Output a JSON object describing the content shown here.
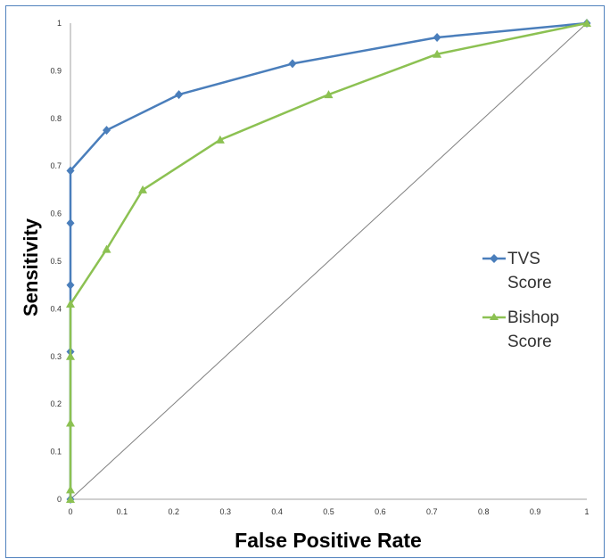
{
  "chart_data": {
    "type": "line",
    "title": "",
    "xlabel": "False Positive Rate",
    "ylabel": "Sensitivity",
    "xlim": [
      0,
      1
    ],
    "ylim": [
      0,
      1
    ],
    "x_ticks": [
      "0",
      "0.1",
      "0.2",
      "0.3",
      "0.4",
      "0.5",
      "0.6",
      "0.7",
      "0.8",
      "0.9",
      "1"
    ],
    "y_ticks": [
      "0",
      "0.1",
      "0.2",
      "0.3",
      "0.4",
      "0.5",
      "0.6",
      "0.7",
      "0.8",
      "0.9",
      "1"
    ],
    "grid": false,
    "legend_position": "right",
    "series": [
      {
        "name": "TVS Score",
        "color": "#4a7ebb",
        "marker": "diamond",
        "x": [
          0,
          0,
          0,
          0,
          0,
          0.07,
          0.21,
          0.43,
          0.71,
          1
        ],
        "y": [
          0,
          0.31,
          0.45,
          0.58,
          0.69,
          0.775,
          0.85,
          0.915,
          0.97,
          1
        ]
      },
      {
        "name": "Bishop Score",
        "color": "#8cc152",
        "marker": "triangle",
        "x": [
          0,
          0,
          0,
          0,
          0,
          0.07,
          0.14,
          0.29,
          0.5,
          0.71,
          1
        ],
        "y": [
          0,
          0.02,
          0.16,
          0.3,
          0.41,
          0.525,
          0.65,
          0.755,
          0.85,
          0.935,
          1
        ]
      }
    ],
    "reference_line": {
      "x": [
        0,
        1
      ],
      "y": [
        0,
        1
      ],
      "color": "#808080"
    }
  }
}
